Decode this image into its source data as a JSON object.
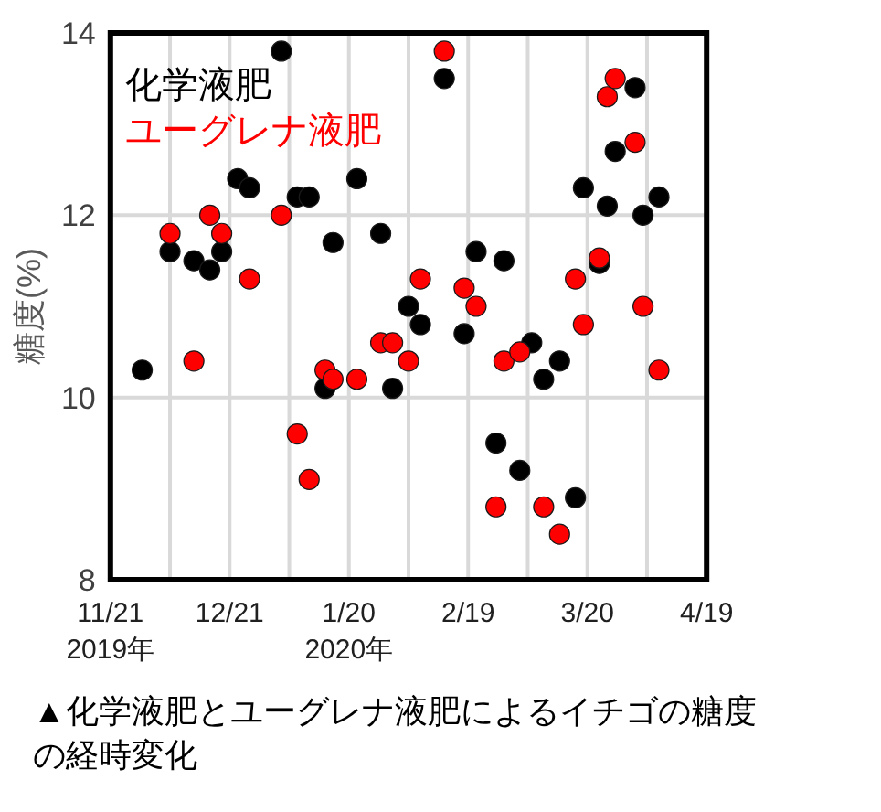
{
  "chart_data": {
    "type": "scatter",
    "ylabel": "糖度(%)",
    "annotations": [
      "▲化学液肥とユーグレナ液肥によるイチゴの糖度の経時変化"
    ],
    "xlim": [
      "2019-11-21",
      "2020-04-19"
    ],
    "xticks": [
      {
        "value": "2019-11-21",
        "label": "11/21\n2019年"
      },
      {
        "value": "2019-12-06",
        "label": null
      },
      {
        "value": "2019-12-21",
        "label": "12/21"
      },
      {
        "value": "2020-01-05",
        "label": null
      },
      {
        "value": "2020-01-20",
        "label": "1/20\n2020年"
      },
      {
        "value": "2020-02-04",
        "label": null
      },
      {
        "value": "2020-02-19",
        "label": "2/19"
      },
      {
        "value": "2020-03-05",
        "label": null
      },
      {
        "value": "2020-03-20",
        "label": "3/20"
      },
      {
        "value": "2020-04-04",
        "label": null
      },
      {
        "value": "2020-04-19",
        "label": "4/19"
      }
    ],
    "ylim": [
      8,
      14
    ],
    "yticks": [
      8,
      10,
      12,
      14
    ],
    "grid": true,
    "legend": "top left",
    "marker": "circle",
    "series": [
      {
        "name": "化学液肥",
        "color": "#000000",
        "x": [
          "2019-11-29",
          "2019-12-06",
          "2019-12-12",
          "2019-12-16",
          "2019-12-19",
          "2019-12-23",
          "2019-12-26",
          "2020-01-03",
          "2020-01-07",
          "2020-01-10",
          "2020-01-14",
          "2020-01-16",
          "2020-01-22",
          "2020-01-28",
          "2020-01-31",
          "2020-02-04",
          "2020-02-07",
          "2020-02-13",
          "2020-02-18",
          "2020-02-21",
          "2020-02-26",
          "2020-02-28",
          "2020-03-03",
          "2020-03-06",
          "2020-03-09",
          "2020-03-13",
          "2020-03-17",
          "2020-03-19",
          "2020-03-23",
          "2020-03-25",
          "2020-03-27",
          "2020-04-01",
          "2020-04-03",
          "2020-04-07"
        ],
        "values": [
          10.3,
          11.6,
          11.5,
          11.4,
          11.6,
          12.4,
          12.3,
          13.8,
          12.2,
          12.2,
          10.1,
          11.7,
          12.4,
          11.8,
          10.1,
          11.0,
          10.8,
          13.5,
          10.7,
          11.6,
          9.5,
          11.5,
          9.2,
          10.6,
          10.2,
          10.4,
          8.9,
          12.3,
          11.47,
          12.1,
          12.7,
          13.4,
          12.0,
          12.2
        ]
      },
      {
        "name": "ユーグレナ液肥",
        "color": "#ff0000",
        "x": [
          "2019-12-06",
          "2019-12-12",
          "2019-12-16",
          "2019-12-19",
          "2019-12-26",
          "2020-01-03",
          "2020-01-07",
          "2020-01-10",
          "2020-01-14",
          "2020-01-16",
          "2020-01-22",
          "2020-01-28",
          "2020-01-31",
          "2020-02-04",
          "2020-02-07",
          "2020-02-13",
          "2020-02-18",
          "2020-02-21",
          "2020-02-26",
          "2020-02-28",
          "2020-03-03",
          "2020-03-09",
          "2020-03-13",
          "2020-03-17",
          "2020-03-19",
          "2020-03-23",
          "2020-03-25",
          "2020-03-27",
          "2020-04-01",
          "2020-04-03",
          "2020-04-07"
        ],
        "values": [
          11.8,
          10.4,
          12.0,
          11.8,
          11.3,
          12.0,
          9.6,
          9.1,
          10.3,
          10.2,
          10.2,
          10.6,
          10.6,
          10.4,
          11.3,
          13.8,
          11.2,
          11.0,
          8.8,
          10.4,
          10.5,
          8.8,
          8.5,
          11.3,
          10.8,
          11.53,
          13.3,
          13.5,
          12.8,
          11.0,
          10.3
        ]
      }
    ]
  }
}
